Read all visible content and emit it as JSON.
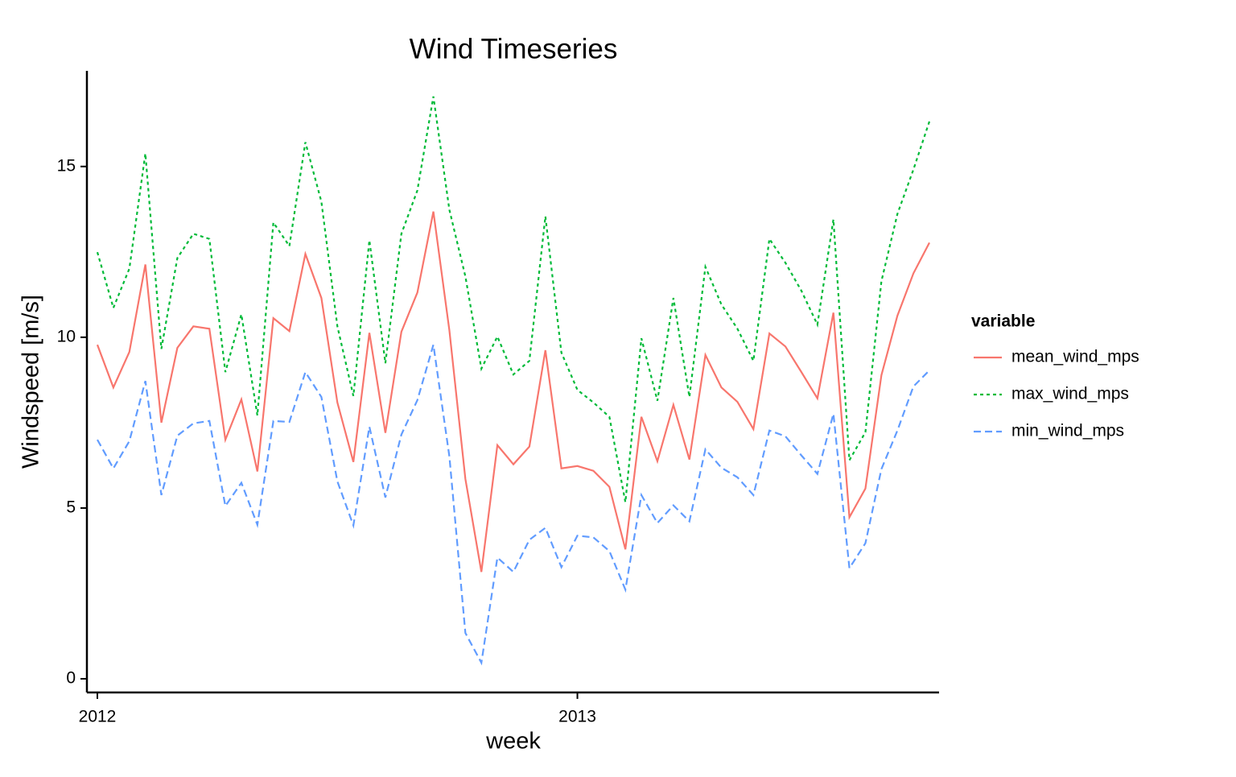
{
  "chart_data": {
    "type": "line",
    "title": "Wind Timeseries",
    "x_label": "week",
    "y_label": "Windspeed [m/s]",
    "legend_title": "variable",
    "legend_position": "right",
    "categories": [
      "2012",
      null,
      null,
      null,
      null,
      null,
      null,
      null,
      null,
      null,
      null,
      null,
      null,
      null,
      null,
      null,
      null,
      null,
      null,
      null,
      null,
      null,
      null,
      null,
      null,
      null,
      null,
      null,
      null,
      null,
      "2013",
      null,
      null,
      null,
      null,
      null,
      null,
      null,
      null,
      null,
      null,
      null,
      null,
      null,
      null,
      null,
      null,
      null,
      null,
      null,
      null,
      null,
      null
    ],
    "ylim": [
      -0.4,
      17.8
    ],
    "yticks": [
      0,
      5,
      10,
      15
    ],
    "grid": false,
    "series": [
      {
        "name": "mean_wind_mps",
        "color": "#f8766d",
        "dash": "solid",
        "values": [
          9.78,
          8.53,
          9.57,
          12.13,
          7.5,
          9.69,
          10.32,
          10.25,
          7.0,
          8.18,
          6.07,
          10.56,
          10.18,
          12.44,
          11.15,
          8.09,
          6.35,
          10.13,
          7.2,
          10.16,
          11.31,
          13.68,
          10.2,
          5.85,
          3.13,
          6.84,
          6.28,
          6.8,
          9.62,
          6.16,
          6.23,
          6.09,
          5.62,
          3.79,
          7.67,
          6.37,
          8.02,
          6.42,
          9.48,
          8.53,
          8.11,
          7.31,
          10.11,
          9.73,
          8.98,
          8.21,
          10.72,
          4.73,
          5.57,
          8.89,
          10.63,
          11.87,
          12.77
        ]
      },
      {
        "name": "max_wind_mps",
        "color": "#00ba38",
        "dash": "dotted",
        "values": [
          12.49,
          10.86,
          12.01,
          15.38,
          9.66,
          12.32,
          13.03,
          12.88,
          8.98,
          10.67,
          7.71,
          13.36,
          12.67,
          15.71,
          13.97,
          10.32,
          8.28,
          12.84,
          9.24,
          13.03,
          14.3,
          17.05,
          13.73,
          11.78,
          9.08,
          10.02,
          8.91,
          9.31,
          13.54,
          9.55,
          8.46,
          8.09,
          7.67,
          5.17,
          9.97,
          8.14,
          11.15,
          8.25,
          12.06,
          10.96,
          10.25,
          9.31,
          12.88,
          12.18,
          11.36,
          10.37,
          13.45,
          6.4,
          7.22,
          11.64,
          13.61,
          14.91,
          16.32
        ]
      },
      {
        "name": "min_wind_mps",
        "color": "#619cff",
        "dash": "dashed",
        "values": [
          7.0,
          6.16,
          6.96,
          8.72,
          5.38,
          7.12,
          7.48,
          7.55,
          5.06,
          5.74,
          4.51,
          7.55,
          7.52,
          8.98,
          8.25,
          5.78,
          4.49,
          7.38,
          5.31,
          7.15,
          8.16,
          9.78,
          6.51,
          1.34,
          0.47,
          3.55,
          3.13,
          4.07,
          4.42,
          3.27,
          4.19,
          4.14,
          3.74,
          2.61,
          5.38,
          4.56,
          5.08,
          4.61,
          6.72,
          6.18,
          5.9,
          5.38,
          7.27,
          7.1,
          6.54,
          6.0,
          7.76,
          3.24,
          3.97,
          6.14,
          7.27,
          8.56,
          9.03
        ]
      }
    ]
  }
}
